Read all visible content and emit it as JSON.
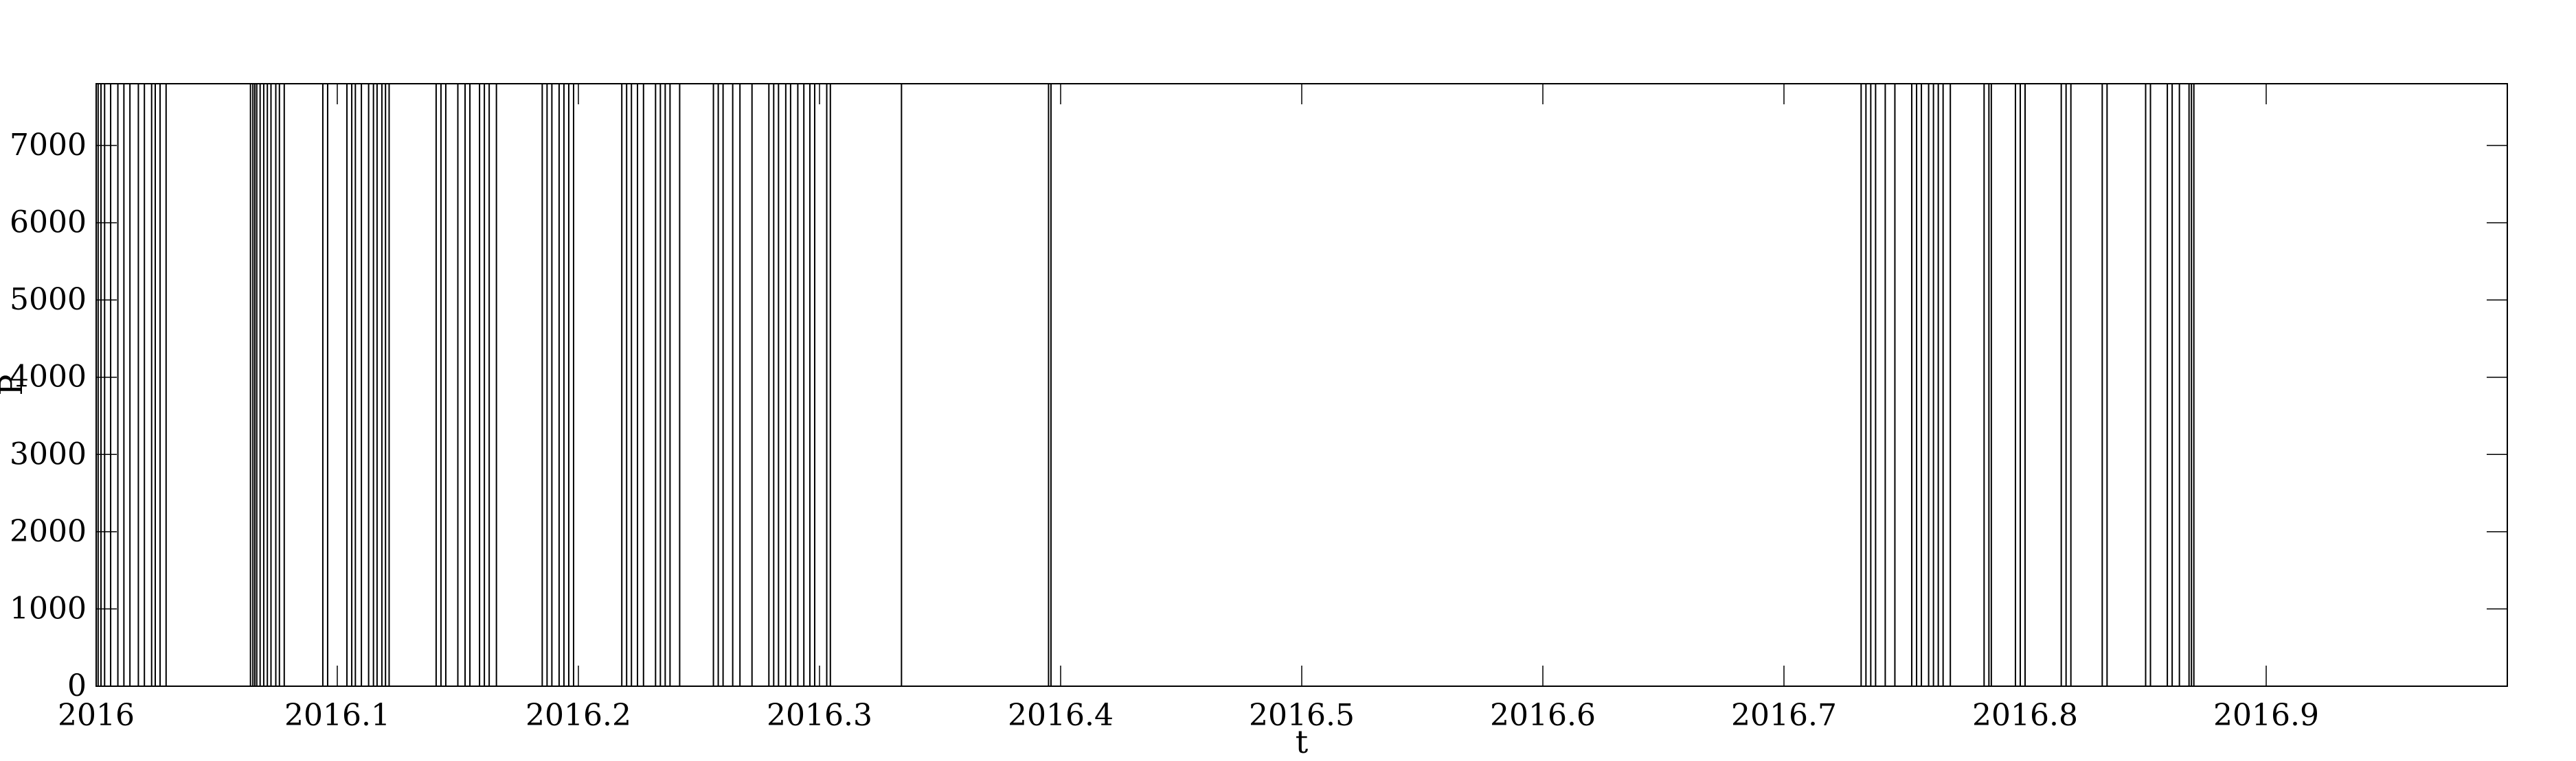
{
  "chart_data": {
    "type": "line",
    "title": "",
    "xlabel": "t",
    "ylabel": "P",
    "xlim": [
      2016.0,
      2017.0
    ],
    "ylim": [
      0,
      7800
    ],
    "x_ticks": [
      {
        "value": 2016.0,
        "label": "2016"
      },
      {
        "value": 2016.1,
        "label": "2016.1"
      },
      {
        "value": 2016.2,
        "label": "2016.2"
      },
      {
        "value": 2016.3,
        "label": "2016.3"
      },
      {
        "value": 2016.4,
        "label": "2016.4"
      },
      {
        "value": 2016.5,
        "label": "2016.5"
      },
      {
        "value": 2016.6,
        "label": "2016.6"
      },
      {
        "value": 2016.7,
        "label": "2016.7"
      },
      {
        "value": 2016.8,
        "label": "2016.8"
      },
      {
        "value": 2016.9,
        "label": "2016.9"
      }
    ],
    "y_ticks": [
      {
        "value": 0,
        "label": "0"
      },
      {
        "value": 1000,
        "label": "1000"
      },
      {
        "value": 2000,
        "label": "2000"
      },
      {
        "value": 3000,
        "label": "3000"
      },
      {
        "value": 4000,
        "label": "4000"
      },
      {
        "value": 5000,
        "label": "5000"
      },
      {
        "value": 6000,
        "label": "6000"
      },
      {
        "value": 7000,
        "label": "7000"
      }
    ],
    "grid": false,
    "line_color": "#000000",
    "spike_value": 7800,
    "spike_times": [
      2016.0008,
      2016.002,
      2016.0035,
      2016.006,
      2016.009,
      2016.0115,
      2016.014,
      2016.0175,
      2016.02,
      2016.023,
      2016.0245,
      2016.0265,
      2016.029,
      2016.064,
      2016.065,
      2016.0658,
      2016.0666,
      2016.068,
      2016.0695,
      2016.071,
      2016.0725,
      2016.0745,
      2016.076,
      2016.078,
      2016.094,
      2016.096,
      2016.104,
      2016.106,
      2016.1075,
      2016.11,
      2016.113,
      2016.115,
      2016.1165,
      2016.1185,
      2016.12,
      2016.1215,
      2016.141,
      2016.143,
      2016.145,
      2016.15,
      2016.153,
      2016.155,
      2016.159,
      2016.161,
      2016.163,
      2016.166,
      2016.185,
      2016.187,
      2016.189,
      2016.192,
      2016.194,
      2016.196,
      2016.198,
      2016.218,
      2016.22,
      2016.222,
      2016.2245,
      2016.227,
      2016.232,
      2016.234,
      2016.236,
      2016.238,
      2016.242,
      2016.256,
      2016.258,
      2016.26,
      2016.264,
      2016.267,
      2016.272,
      2016.279,
      2016.281,
      2016.283,
      2016.286,
      2016.288,
      2016.291,
      2016.2935,
      2016.296,
      2016.298,
      2016.303,
      2016.3045,
      2016.334,
      2016.395,
      2016.396,
      2016.732,
      2016.734,
      2016.736,
      2016.738,
      2016.742,
      2016.746,
      2016.753,
      2016.755,
      2016.757,
      2016.76,
      2016.762,
      2016.764,
      2016.766,
      2016.769,
      2016.783,
      2016.785,
      2016.786,
      2016.796,
      2016.798,
      2016.8,
      2016.815,
      2016.817,
      2016.819,
      2016.832,
      2016.834,
      2016.85,
      2016.852,
      2016.859,
      2016.861,
      2016.864,
      2016.868,
      2016.869,
      2016.87
    ]
  }
}
